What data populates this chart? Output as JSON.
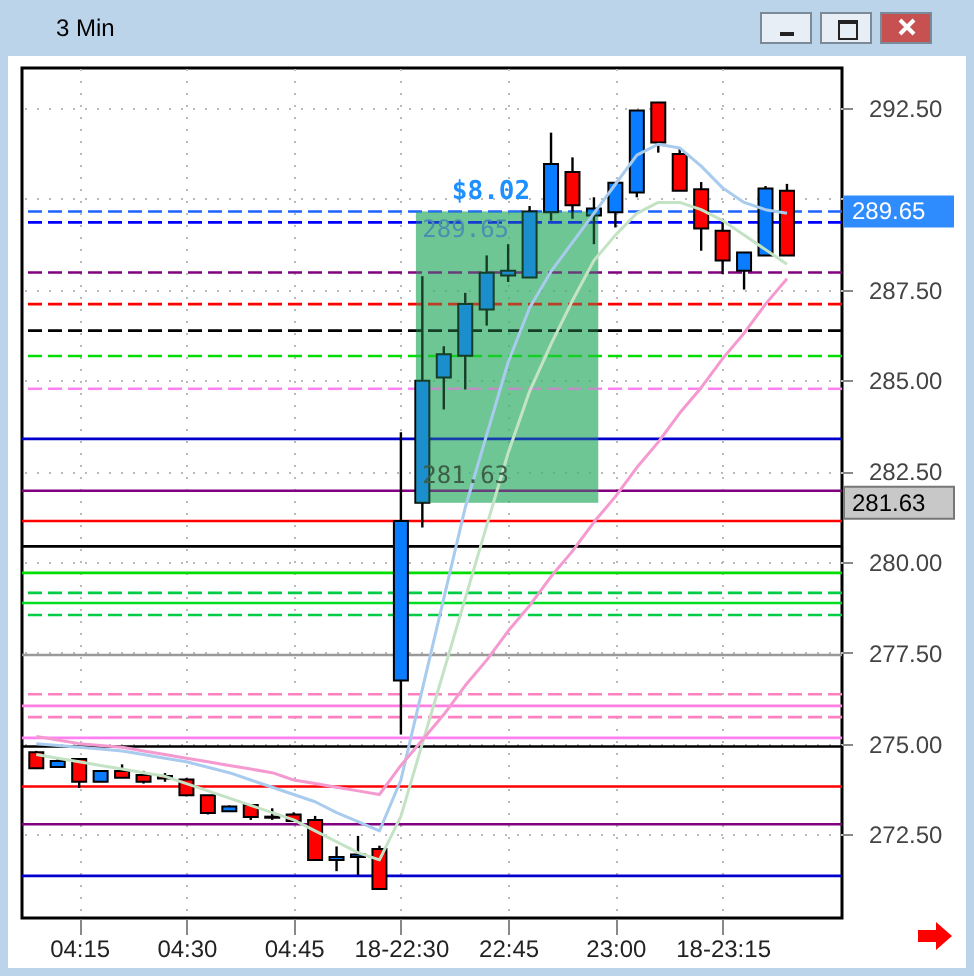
{
  "chart_data": {
    "type": "candlestick",
    "title": "3 Min",
    "categories": [
      null,
      null,
      "04:15",
      null,
      null,
      null,
      null,
      "04:30",
      null,
      null,
      null,
      null,
      "04:45",
      null,
      null,
      null,
      null,
      "18-22:30",
      null,
      null,
      null,
      null,
      "22:45",
      null,
      null,
      null,
      null,
      "23:00",
      null,
      null,
      null,
      null,
      "18-23:15",
      null,
      null,
      null
    ],
    "ohlc": [
      [
        274.76,
        274.8,
        274.3,
        274.32
      ],
      [
        274.36,
        274.61,
        274.36,
        274.52
      ],
      [
        274.58,
        274.6,
        273.78,
        273.95
      ],
      [
        273.95,
        274.25,
        273.95,
        274.25
      ],
      [
        274.25,
        274.43,
        274.06,
        274.06
      ],
      [
        274.14,
        274.25,
        273.9,
        273.95
      ],
      [
        274.11,
        274.19,
        273.95,
        274.04
      ],
      [
        274.01,
        274.05,
        273.55,
        273.58
      ],
      [
        273.58,
        273.58,
        273.05,
        273.09
      ],
      [
        273.14,
        273.3,
        273.12,
        273.27
      ],
      [
        273.31,
        273.31,
        272.9,
        272.98
      ],
      [
        272.99,
        273.22,
        272.9,
        272.96
      ],
      [
        273.05,
        273.11,
        272.87,
        272.87
      ],
      [
        272.9,
        273.01,
        271.8,
        271.8
      ],
      [
        271.8,
        272.17,
        271.49,
        271.88
      ],
      [
        271.88,
        272.46,
        271.38,
        271.95
      ],
      [
        272.1,
        272.19,
        271.0,
        271.0
      ],
      [
        276.74,
        283.57,
        275.25,
        281.13
      ],
      [
        281.63,
        287.87,
        280.95,
        284.99
      ],
      [
        285.08,
        285.94,
        284.2,
        285.72
      ],
      [
        285.68,
        287.41,
        284.75,
        287.1
      ],
      [
        286.95,
        288.44,
        286.51,
        287.96
      ],
      [
        287.89,
        288.75,
        287.71,
        288.02
      ],
      [
        287.83,
        289.8,
        287.83,
        289.65
      ],
      [
        289.63,
        291.82,
        289.4,
        290.96
      ],
      [
        290.74,
        291.14,
        289.45,
        289.82
      ],
      [
        289.54,
        290.04,
        288.75,
        289.73
      ],
      [
        289.63,
        290.44,
        289.21,
        290.44
      ],
      [
        290.17,
        292.43,
        290.04,
        292.43
      ],
      [
        292.65,
        292.65,
        291.27,
        291.55
      ],
      [
        291.23,
        291.41,
        290.22,
        290.22
      ],
      [
        290.26,
        290.46,
        288.57,
        289.18
      ],
      [
        289.12,
        289.45,
        287.93,
        288.3
      ],
      [
        288.02,
        288.52,
        287.5,
        288.52
      ],
      [
        288.44,
        290.35,
        288.44,
        290.28
      ],
      [
        290.22,
        290.41,
        288.44,
        288.44
      ]
    ],
    "colors": [
      "#ff0000",
      "#0a7cff",
      "#ff0000",
      "#0a7cff",
      "#ff0000",
      "#ff0000",
      "#ff0000",
      "#ff0000",
      "#ff0000",
      "#0a7cff",
      "#ff0000",
      "#ff0000",
      "#ff0000",
      "#ff0000",
      "#0a7cff",
      "#0a7cff",
      "#ff0000",
      "#0a7cff",
      "#0a7cff",
      "#0a7cff",
      "#0a7cff",
      "#0a7cff",
      "#0a7cff",
      "#0a7cff",
      "#0a7cff",
      "#ff0000",
      "#0a7cff",
      "#0a7cff",
      "#0a7cff",
      "#ff0000",
      "#ff0000",
      "#ff0000",
      "#ff0000",
      "#0a7cff",
      "#0a7cff",
      "#ff0000"
    ],
    "series": [
      {
        "type": "line",
        "color": "#a8cbee",
        "values": [
          275.0,
          274.95,
          274.9,
          274.85,
          274.8,
          274.7,
          274.6,
          274.5,
          274.35,
          274.2,
          274.0,
          273.8,
          273.6,
          273.4,
          273.1,
          272.85,
          272.6,
          274.0,
          276.5,
          279.0,
          281.5,
          283.5,
          285.5,
          287.0,
          288.0,
          288.8,
          289.6,
          290.4,
          291.2,
          291.5,
          291.4,
          290.9,
          290.3,
          289.9,
          289.7,
          289.6
        ]
      },
      {
        "type": "line",
        "color": "#c4e3c4",
        "values": [
          274.7,
          274.6,
          274.5,
          274.4,
          274.3,
          274.2,
          274.1,
          273.9,
          273.7,
          273.5,
          273.3,
          273.1,
          272.9,
          272.6,
          272.3,
          272.0,
          271.8,
          273.0,
          275.0,
          277.0,
          279.0,
          281.0,
          283.0,
          284.7,
          286.0,
          287.2,
          288.3,
          289.0,
          289.6,
          289.9,
          289.9,
          289.7,
          289.4,
          289.0,
          288.6,
          288.2
        ]
      },
      {
        "type": "line",
        "color": "#f59ad0",
        "values": [
          275.2,
          275.1,
          275.0,
          274.95,
          274.9,
          274.8,
          274.7,
          274.6,
          274.5,
          274.4,
          274.3,
          274.2,
          274.0,
          273.9,
          273.8,
          273.7,
          273.6,
          274.4,
          275.1,
          275.8,
          276.6,
          277.3,
          278.1,
          278.8,
          279.6,
          280.3,
          281.1,
          281.8,
          282.6,
          283.3,
          284.1,
          284.8,
          285.6,
          286.3,
          287.1,
          287.8
        ]
      }
    ],
    "ylim": [
      270.2,
      293.6
    ],
    "yticks": [
      {
        "value": 272.5,
        "label": "272.50"
      },
      {
        "value": 275,
        "label": "275.00"
      },
      {
        "value": 277.5,
        "label": "277.50"
      },
      {
        "value": 280,
        "label": "280.00"
      },
      {
        "value": 282.5,
        "label": "282.50"
      },
      {
        "value": 285,
        "label": "285.00"
      },
      {
        "value": 287.5,
        "label": "287.50"
      },
      {
        "value": 290,
        "label": null
      },
      {
        "value": 292.5,
        "label": "292.50"
      }
    ],
    "grid": true,
    "ref_lines": [
      {
        "axis": "y",
        "value": 289.35,
        "color": "#0000ff",
        "line_style": "dashed"
      },
      {
        "axis": "y",
        "value": 287.97,
        "color": "#800080",
        "line_style": "dashed"
      },
      {
        "axis": "y",
        "value": 287.1,
        "color": "#ff0000",
        "line_style": "dashed"
      },
      {
        "axis": "y",
        "value": 286.37,
        "color": "#000000",
        "line_style": "dashed"
      },
      {
        "axis": "y",
        "value": 285.67,
        "color": "#00dd00",
        "line_style": "dashed"
      },
      {
        "axis": "y",
        "value": 284.77,
        "color": "#ff80f0",
        "line_style": "dashed"
      },
      {
        "axis": "y",
        "value": 283.39,
        "color": "#0000cc",
        "line_style": "solid"
      },
      {
        "axis": "y",
        "value": 281.96,
        "color": "#800080",
        "line_style": "solid"
      },
      {
        "axis": "y",
        "value": 281.13,
        "color": "#ff0000",
        "line_style": "solid"
      },
      {
        "axis": "y",
        "value": 280.43,
        "color": "#000000",
        "line_style": "solid"
      },
      {
        "axis": "y",
        "value": 279.7,
        "color": "#00dd00",
        "line_style": "solid"
      },
      {
        "axis": "y",
        "value": 279.15,
        "color": "#00cc44",
        "line_style": "dashed"
      },
      {
        "axis": "y",
        "value": 278.87,
        "color": "#00dd22",
        "line_style": "solid"
      },
      {
        "axis": "y",
        "value": 278.54,
        "color": "#00cc44",
        "line_style": "dashed"
      },
      {
        "axis": "y",
        "value": 277.44,
        "color": "#999999",
        "line_style": "solid"
      },
      {
        "axis": "y",
        "value": 276.36,
        "color": "#ff80c0",
        "line_style": "dashed"
      },
      {
        "axis": "y",
        "value": 276.04,
        "color": "#ff80e0",
        "line_style": "solid"
      },
      {
        "axis": "y",
        "value": 275.73,
        "color": "#ff80c0",
        "line_style": "dashed"
      },
      {
        "axis": "y",
        "value": 275.16,
        "color": "#ff80f0",
        "line_style": "solid"
      },
      {
        "axis": "y",
        "value": 274.92,
        "color": "#000000",
        "line_style": "solid"
      },
      {
        "axis": "y",
        "value": 273.82,
        "color": "#ff0000",
        "line_style": "solid"
      },
      {
        "axis": "y",
        "value": 272.78,
        "color": "#800080",
        "line_style": "solid"
      },
      {
        "axis": "y",
        "value": 271.36,
        "color": "#0000cc",
        "line_style": "solid"
      },
      {
        "axis": "y",
        "value": 289.65,
        "color": "#1e64ff",
        "line_style": "dashed",
        "label": "289.65"
      }
    ],
    "bands": [
      {
        "axis": "y",
        "from": 281.63,
        "to": 289.65,
        "color": "#3cb371"
      }
    ],
    "annotations": [
      {
        "text": "$8.02",
        "y": 289.65
      },
      {
        "text": "289.65",
        "y": 289.65
      },
      "281.63",
      "281.63"
    ]
  }
}
